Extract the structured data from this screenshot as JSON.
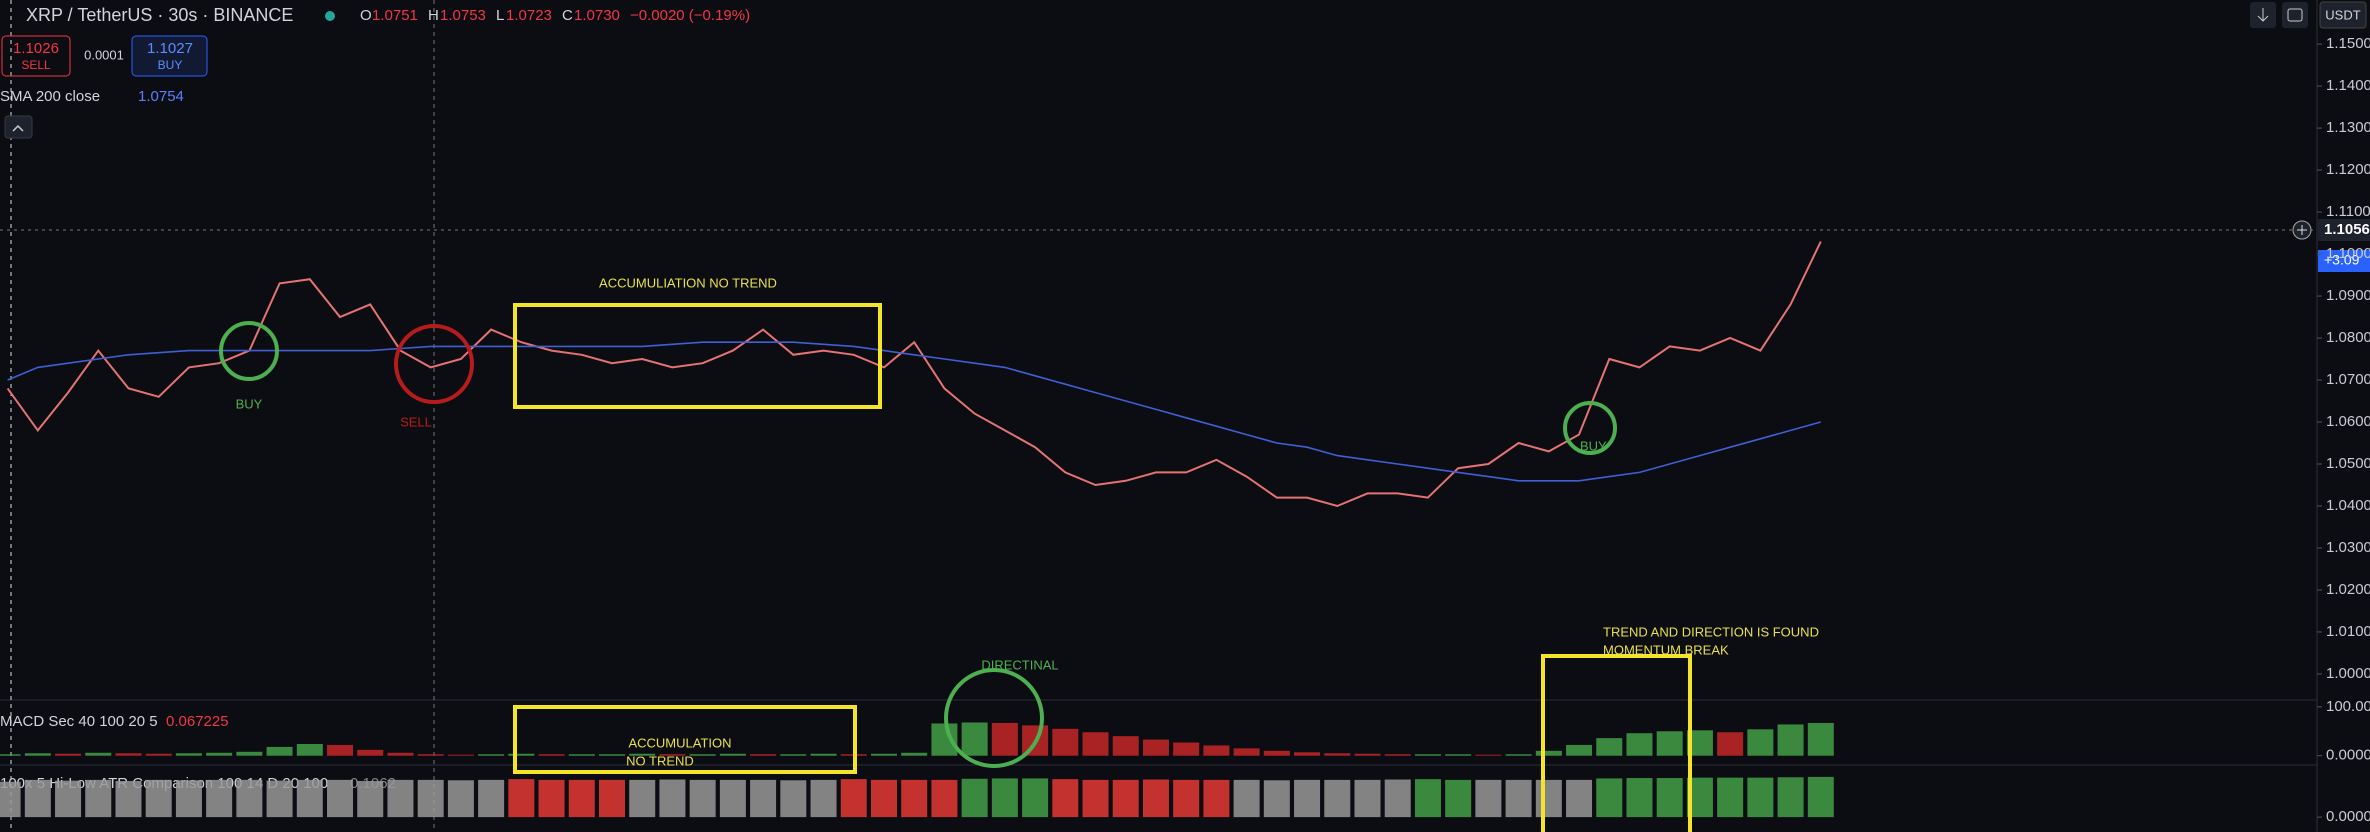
{
  "header": {
    "ohlc": [
      {
        "key": "O",
        "value": "1.0751"
      },
      {
        "key": "H",
        "value": "1.0753"
      },
      {
        "key": "L",
        "value": "1.0723"
      },
      {
        "key": "C",
        "value": "1.0730"
      }
    ],
    "change": "−0.0020 (−0.19%)"
  },
  "order": {
    "sell_price": "1.1026",
    "sell": "SELL",
    "spread": "0.0001",
    "buy_price": "1.1027",
    "buy": "BUY"
  },
  "currency": "USDT",
  "last_price": {
    "price": "1.1056",
    "change": "+3.09"
  },
  "annotations": {
    "accum_top": "ACCUMULIATION NO TREND",
    "buy_1": "BUY",
    "sell_1": "SELL",
    "buy_2": "BUY",
    "directional": "DIRECTINAL",
    "accum_1": "ACCUMULATION",
    "accum_2": "NO TREND",
    "trend_1": "TREND AND DIRECTION IS FOUND",
    "trend_2": "MOMENTUM BREAK"
  },
  "chart_data": [
    {
      "type": "line",
      "ylim": [
        0.9938,
        1.1605
      ],
      "grid": false,
      "yticks": [
        {
          "value": 1.15,
          "label": "1.1500"
        },
        {
          "value": 1.14,
          "label": "1.1400"
        },
        {
          "value": 1.13,
          "label": "1.1300"
        },
        {
          "value": 1.12,
          "label": "1.1200"
        },
        {
          "value": 1.11,
          "label": "1.1100"
        },
        {
          "value": 1.1,
          "label": "1.1000"
        },
        {
          "value": 1.09,
          "label": "1.0900"
        },
        {
          "value": 1.08,
          "label": "1.0800"
        },
        {
          "value": 1.07,
          "label": "1.0700"
        },
        {
          "value": 1.06,
          "label": "1.0600"
        },
        {
          "value": 1.05,
          "label": "1.0500"
        },
        {
          "value": 1.04,
          "label": "1.0400"
        },
        {
          "value": 1.03,
          "label": "1.0300"
        },
        {
          "value": 1.02,
          "label": "1.0200"
        },
        {
          "value": 1.01,
          "label": "1.0100"
        },
        {
          "value": 1.0,
          "label": "1.0000"
        }
      ],
      "series": [
        {
          "name": "XRP / TetherUS · 30s · BINANCE",
          "color": "#e57373",
          "values": [
            1.068,
            1.058,
            1.067,
            1.077,
            1.068,
            1.066,
            1.073,
            1.074,
            1.077,
            1.093,
            1.094,
            1.085,
            1.088,
            1.077,
            1.073,
            1.075,
            1.082,
            1.079,
            1.077,
            1.076,
            1.074,
            1.075,
            1.073,
            1.074,
            1.077,
            1.082,
            1.076,
            1.077,
            1.076,
            1.073,
            1.079,
            1.068,
            1.062,
            1.058,
            1.054,
            1.048,
            1.045,
            1.046,
            1.048,
            1.048,
            1.051,
            1.047,
            1.042,
            1.042,
            1.04,
            1.043,
            1.043,
            1.042,
            1.049,
            1.05,
            1.055,
            1.053,
            1.057,
            1.075,
            1.073,
            1.078,
            1.077,
            1.08,
            1.077,
            1.088,
            1.103
          ]
        },
        {
          "name": "SMA 200 close",
          "value_label": "1.0754",
          "color": "#3f5fd4",
          "values": [
            1.07,
            1.073,
            1.074,
            1.075,
            1.076,
            1.0765,
            1.077,
            1.077,
            1.077,
            1.077,
            1.077,
            1.077,
            1.077,
            1.0775,
            1.078,
            1.078,
            1.078,
            1.078,
            1.078,
            1.078,
            1.078,
            1.078,
            1.0785,
            1.079,
            1.079,
            1.079,
            1.079,
            1.0785,
            1.078,
            1.077,
            1.076,
            1.075,
            1.074,
            1.073,
            1.071,
            1.069,
            1.067,
            1.065,
            1.063,
            1.061,
            1.059,
            1.057,
            1.055,
            1.054,
            1.052,
            1.051,
            1.05,
            1.049,
            1.048,
            1.047,
            1.046,
            1.046,
            1.046,
            1.047,
            1.048,
            1.05,
            1.052,
            1.054,
            1.056,
            1.058,
            1.06
          ]
        }
      ]
    },
    {
      "type": "bar",
      "title": "MACD Sec 40 100 20 5",
      "value_label": "0.067225",
      "ylim": [
        -19,
        114
      ],
      "up_color": "#43a047",
      "down_color": "#c62828",
      "yticks": [
        {
          "value": 100,
          "label": "100.0000"
        },
        {
          "value": 0,
          "label": "0.0000"
        }
      ],
      "values": [
        3,
        5,
        4,
        6,
        5,
        4,
        5,
        6,
        8,
        18,
        24,
        22,
        12,
        6,
        3,
        2,
        3,
        4,
        3,
        3,
        3,
        4,
        3,
        3,
        4,
        3,
        3,
        4,
        3,
        4,
        6,
        66,
        68,
        67,
        62,
        55,
        48,
        40,
        33,
        27,
        21,
        15,
        10,
        7,
        5,
        4,
        3,
        3,
        3,
        2,
        3,
        10,
        22,
        36,
        46,
        50,
        52,
        48,
        54,
        64,
        67
      ]
    },
    {
      "type": "bar",
      "title": "100x 5 Hi-Low ATR Comparison 100 14 D 20 100",
      "value_label": "0.1062",
      "ylim": [
        -0.04,
        0.14
      ],
      "yticks": [
        {
          "value": 0,
          "label": "0.0000"
        }
      ],
      "values": [
        0.095,
        0.1,
        0.098,
        0.1,
        0.097,
        0.1,
        0.099,
        0.1,
        0.1,
        0.098,
        0.1,
        0.1,
        0.097,
        0.1,
        0.1,
        0.099,
        0.1,
        0.102,
        0.1,
        0.1,
        0.1,
        0.1,
        0.101,
        0.1,
        0.1,
        0.1,
        0.099,
        0.1,
        0.102,
        0.1,
        0.1,
        0.1,
        0.103,
        0.104,
        0.104,
        0.102,
        0.1,
        0.1,
        0.101,
        0.1,
        0.1,
        0.1,
        0.099,
        0.1,
        0.1,
        0.1,
        0.101,
        0.102,
        0.1,
        0.1,
        0.1,
        0.1,
        0.1,
        0.104,
        0.105,
        0.105,
        0.106,
        0.106,
        0.106,
        0.107,
        0.108
      ],
      "colors": [
        "#999",
        "#999",
        "#999",
        "#999",
        "#999",
        "#999",
        "#999",
        "#999",
        "#999",
        "#999",
        "#999",
        "#999",
        "#999",
        "#999",
        "#999",
        "#999",
        "#999",
        "#e53935",
        "#e53935",
        "#e53935",
        "#e53935",
        "#999",
        "#999",
        "#999",
        "#999",
        "#999",
        "#999",
        "#999",
        "#e53935",
        "#e53935",
        "#e53935",
        "#e53935",
        "#43a047",
        "#43a047",
        "#43a047",
        "#e53935",
        "#e53935",
        "#e53935",
        "#e53935",
        "#e53935",
        "#e53935",
        "#999",
        "#999",
        "#999",
        "#999",
        "#999",
        "#999",
        "#43a047",
        "#43a047",
        "#999",
        "#999",
        "#999",
        "#999",
        "#43a047",
        "#43a047",
        "#43a047",
        "#43a047",
        "#43a047",
        "#43a047",
        "#43a047",
        "#43a047"
      ]
    }
  ]
}
